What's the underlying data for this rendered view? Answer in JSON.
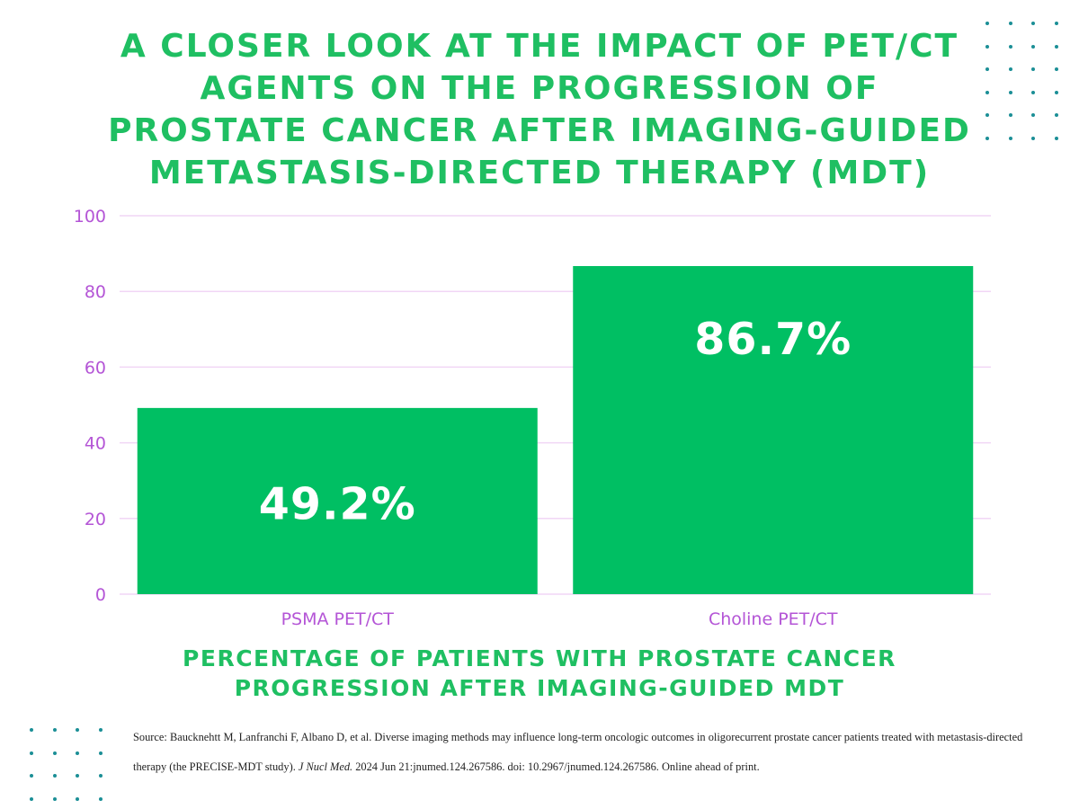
{
  "title": "A CLOSER LOOK AT THE IMPACT OF PET/CT AGENTS ON THE PROGRESSION OF PROSTATE CANCER AFTER IMAGING-GUIDED METASTASIS-DIRECTED THERAPY (MDT)",
  "source": {
    "prefix": "Source: Baucknehtt M, Lanfranchi F, Albano D, et al. Diverse imaging methods may influence long-term oncologic outcomes in oligorecurrent prostate cancer patients treated with metastasis-directed therapy (the PRECISE-MDT study). ",
    "journal": "J Nucl Med.",
    "suffix": " 2024 Jun 21:jnumed.124.267586. doi: 10.2967/jnumed.124.267586. Online ahead of print."
  },
  "colors": {
    "bar": "#00bf63",
    "title": "#1fbf62",
    "axis_text": "#b455d6",
    "grid": "#f1d6f5",
    "dots": "#1b8f96"
  },
  "chart_data": {
    "type": "bar",
    "categories": [
      "PSMA PET/CT",
      "Choline PET/CT"
    ],
    "values": [
      49.2,
      86.7
    ],
    "data_labels": [
      "49.2%",
      "86.7%"
    ],
    "yticks": [
      0,
      20,
      40,
      60,
      80,
      100
    ],
    "ylim": [
      0,
      100
    ],
    "grid": true,
    "xlabel": "PERCENTAGE OF PATIENTS WITH PROSTATE CANCER PROGRESSION AFTER IMAGING-GUIDED MDT",
    "ylabel": ""
  }
}
